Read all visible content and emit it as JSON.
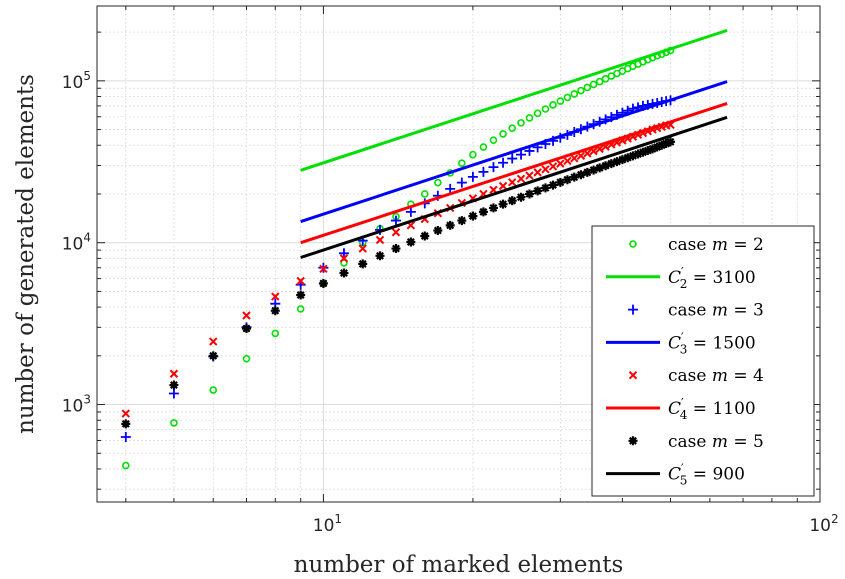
{
  "chart_data": {
    "type": "scatter",
    "xlabel": "number of marked elements",
    "ylabel": "number of generated elements",
    "xscale": "log",
    "yscale": "log",
    "xlim": [
      3.5,
      100
    ],
    "ylim": [
      250,
      290000
    ],
    "grid": true,
    "legend_position": "bottom-right",
    "x_ticks": [
      {
        "base": "10",
        "exp": "1",
        "value": 10
      },
      {
        "base": "10",
        "exp": "2",
        "value": 100
      }
    ],
    "y_ticks": [
      {
        "base": "10",
        "exp": "3",
        "value": 1000
      },
      {
        "base": "10",
        "exp": "4",
        "value": 10000
      },
      {
        "base": "10",
        "exp": "5",
        "value": 100000
      }
    ],
    "series": [
      {
        "name": "case m = 2",
        "legend": {
          "prefix": "case ",
          "var": "m",
          "sub": "",
          "suffix": " = 2"
        },
        "kind": "markers",
        "marker": "circle",
        "color": "#00e000",
        "x": [
          4,
          5,
          6,
          7,
          8,
          9,
          10,
          11,
          12,
          13,
          14,
          15,
          16,
          17,
          18,
          19,
          20,
          21,
          22,
          23,
          24,
          25,
          26,
          27,
          28,
          29,
          30,
          31,
          32,
          33,
          34,
          35,
          36,
          37,
          38,
          39,
          40,
          41,
          42,
          43,
          44,
          45,
          46,
          47,
          48,
          49,
          50
        ],
        "y": [
          420,
          770,
          1230,
          1920,
          2750,
          3900,
          5600,
          7500,
          10000,
          12200,
          14500,
          17300,
          20000,
          23500,
          27000,
          31000,
          35000,
          39000,
          43000,
          47000,
          51000,
          55000,
          59000,
          63000,
          67000,
          71000,
          75000,
          79000,
          83000,
          87000,
          91000,
          95000,
          99000,
          103000,
          107000,
          111000,
          115000,
          119000,
          123000,
          127000,
          131000,
          135000,
          139000,
          143000,
          146000,
          150000,
          154000
        ]
      },
      {
        "name": "C'_2 = 3100",
        "legend": {
          "prefix": "",
          "var": "C",
          "sub": "2",
          "suffix": " = 3100"
        },
        "kind": "line",
        "color": "#00e000",
        "x": [
          9,
          65
        ],
        "y": [
          28000,
          205000
        ]
      },
      {
        "name": "case m = 3",
        "legend": {
          "prefix": "case ",
          "var": "m",
          "sub": "",
          "suffix": " = 3"
        },
        "kind": "markers",
        "marker": "plus",
        "color": "#0000ff",
        "x": [
          4,
          5,
          6,
          7,
          8,
          9,
          10,
          11,
          12,
          13,
          14,
          15,
          16,
          17,
          18,
          19,
          20,
          21,
          22,
          23,
          24,
          25,
          26,
          27,
          28,
          29,
          30,
          31,
          32,
          33,
          34,
          35,
          36,
          37,
          38,
          39,
          40,
          41,
          42,
          43,
          44,
          45,
          46,
          47,
          48,
          49,
          50
        ],
        "y": [
          630,
          1170,
          1980,
          3000,
          4200,
          5500,
          7000,
          8600,
          10300,
          12000,
          13700,
          15500,
          17500,
          19500,
          21500,
          23500,
          25500,
          27400,
          29300,
          31200,
          33100,
          35000,
          36900,
          38800,
          40700,
          42600,
          44500,
          46400,
          48300,
          50200,
          52100,
          54000,
          55900,
          57800,
          59700,
          61600,
          63500,
          65400,
          67300,
          68500,
          70000,
          71000,
          72000,
          73000,
          74000,
          75000,
          75700
        ]
      },
      {
        "name": "C'_3 = 1500",
        "legend": {
          "prefix": "",
          "var": "C",
          "sub": "3",
          "suffix": " = 1500"
        },
        "kind": "line",
        "color": "#0000ff",
        "x": [
          9,
          65
        ],
        "y": [
          13500,
          99000
        ]
      },
      {
        "name": "case m = 4",
        "legend": {
          "prefix": "case ",
          "var": "m",
          "sub": "",
          "suffix": " = 4"
        },
        "kind": "markers",
        "marker": "x",
        "color": "#ff0000",
        "x": [
          4,
          5,
          6,
          7,
          8,
          9,
          10,
          11,
          12,
          13,
          14,
          15,
          16,
          17,
          18,
          19,
          20,
          21,
          22,
          23,
          24,
          25,
          26,
          27,
          28,
          29,
          30,
          31,
          32,
          33,
          34,
          35,
          36,
          37,
          38,
          39,
          40,
          41,
          42,
          43,
          44,
          45,
          46,
          47,
          48,
          49,
          50
        ],
        "y": [
          880,
          1550,
          2450,
          3550,
          4650,
          5800,
          6900,
          8000,
          9200,
          10400,
          11600,
          12800,
          14000,
          15200,
          16400,
          17600,
          18800,
          20000,
          21200,
          22400,
          23600,
          24800,
          26000,
          27200,
          28400,
          29600,
          30800,
          32000,
          33200,
          34400,
          35600,
          36800,
          38000,
          39200,
          40400,
          41600,
          42800,
          44000,
          45200,
          46400,
          47600,
          48800,
          50000,
          51000,
          52000,
          53000,
          53500
        ]
      },
      {
        "name": "C'_4 = 1100",
        "legend": {
          "prefix": "",
          "var": "C",
          "sub": "4",
          "suffix": " = 1100"
        },
        "kind": "line",
        "color": "#ff0000",
        "x": [
          9,
          65
        ],
        "y": [
          10000,
          72500
        ]
      },
      {
        "name": "case m = 5",
        "legend": {
          "prefix": "case ",
          "var": "m",
          "sub": "",
          "suffix": " = 5"
        },
        "kind": "markers",
        "marker": "asterisk",
        "color": "#000000",
        "x": [
          4,
          5,
          6,
          7,
          8,
          9,
          10,
          11,
          12,
          13,
          14,
          15,
          16,
          17,
          18,
          19,
          20,
          21,
          22,
          23,
          24,
          25,
          26,
          27,
          28,
          29,
          30,
          31,
          32,
          33,
          34,
          35,
          36,
          37,
          38,
          39,
          40,
          41,
          42,
          43,
          44,
          45,
          46,
          47,
          48,
          49,
          50
        ],
        "y": [
          760,
          1320,
          2000,
          2950,
          3800,
          4750,
          5600,
          6500,
          7400,
          8300,
          9200,
          10100,
          11000,
          11900,
          12800,
          13700,
          14600,
          15500,
          16400,
          17300,
          18200,
          19100,
          20000,
          20900,
          21800,
          22700,
          23600,
          24500,
          25400,
          26300,
          27200,
          28100,
          29000,
          29900,
          30800,
          31700,
          32600,
          33500,
          34400,
          35300,
          36200,
          37100,
          38000,
          39000,
          40000,
          41000,
          42000
        ]
      },
      {
        "name": "C'_5 = 900",
        "legend": {
          "prefix": "",
          "var": "C",
          "sub": "5",
          "suffix": " = 900"
        },
        "kind": "line",
        "color": "#000000",
        "x": [
          9,
          65
        ],
        "y": [
          8100,
          59500
        ]
      }
    ]
  }
}
